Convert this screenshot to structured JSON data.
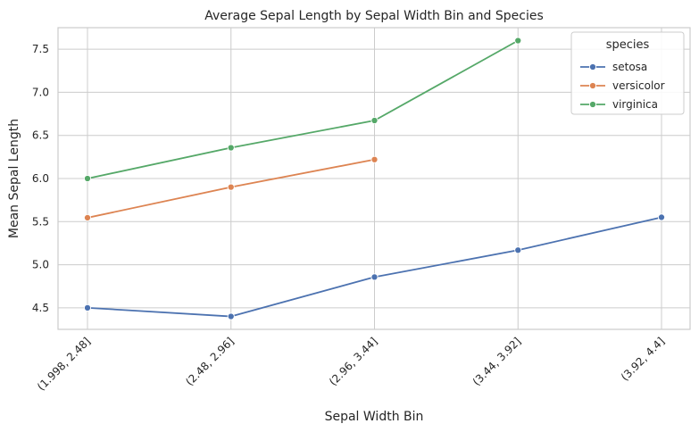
{
  "chart_data": {
    "type": "line",
    "title": "Average Sepal Length by Sepal Width Bin and Species",
    "xlabel": "Sepal Width Bin",
    "ylabel": "Mean Sepal Length",
    "categories": [
      "(1.998, 2.48]",
      "(2.48, 2.96]",
      "(2.96, 3.44]",
      "(3.44, 3.92]",
      "(3.92, 4.4]"
    ],
    "ylim": [
      4.25,
      7.75
    ],
    "yticks": [
      4.5,
      5.0,
      5.5,
      6.0,
      6.5,
      7.0,
      7.5
    ],
    "ytick_labels": [
      "4.5",
      "5.0",
      "5.5",
      "6.0",
      "6.5",
      "7.0",
      "7.5"
    ],
    "grid": true,
    "legend": {
      "title": "species",
      "placement": "top-right"
    },
    "series": [
      {
        "name": "setosa",
        "color": "#4c72b0",
        "values": [
          4.5,
          4.4,
          4.857,
          5.169,
          5.55
        ]
      },
      {
        "name": "versicolor",
        "color": "#dd8452",
        "values": [
          5.545,
          5.9,
          6.22,
          null,
          null
        ]
      },
      {
        "name": "virginica",
        "color": "#55a868",
        "values": [
          6.0,
          6.357,
          6.673,
          7.6,
          null
        ]
      }
    ]
  }
}
